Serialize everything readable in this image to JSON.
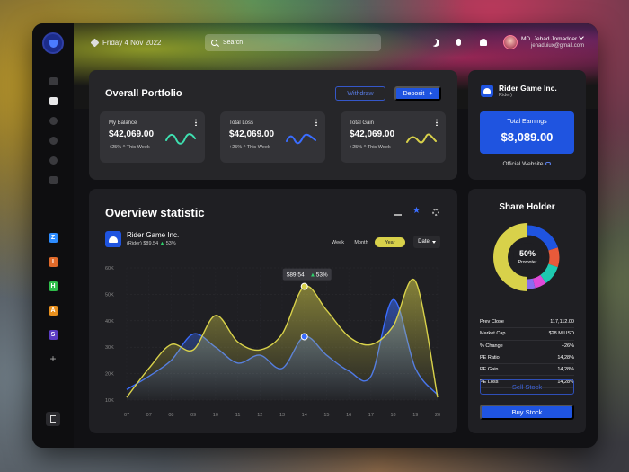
{
  "header": {
    "date": "Friday 4 Nov 2022",
    "search_placeholder": "Search",
    "user_name": "MD. Jehad Jomadder",
    "user_email": "jehaduiux@gmail.com"
  },
  "sidebar": {
    "nav_icons": [
      "grid-icon",
      "chart-icon",
      "chat-icon",
      "message-icon",
      "user-icon",
      "card-icon"
    ],
    "apps": [
      {
        "icon": "zoom-app-icon",
        "letter": "Z",
        "color": "#2d8cff"
      },
      {
        "icon": "app-orange-icon",
        "letter": "I",
        "color": "#e06a2a"
      },
      {
        "icon": "app-green-icon",
        "letter": "H",
        "color": "#2fbd4a"
      },
      {
        "icon": "app-amber-icon",
        "letter": "A",
        "color": "#e8901e"
      },
      {
        "icon": "app-purple-icon",
        "letter": "S",
        "color": "#5b3cc4"
      }
    ]
  },
  "portfolio": {
    "title": "Overall Portfolio",
    "withdraw_label": "Withdraw",
    "deposit_label": "Deposit",
    "cards": [
      {
        "label": "My Balance",
        "value": "$42,069.00",
        "change": "+25%",
        "period": "This Week",
        "spark_color": "#3ee0b0"
      },
      {
        "label": "Total Loss",
        "value": "$42,069.00",
        "change": "+25%",
        "period": "This Week",
        "spark_color": "#3a6dff"
      },
      {
        "label": "Total Gain",
        "value": "$42,069.00",
        "change": "+25%",
        "period": "This Week",
        "spark_color": "#d8d14a"
      }
    ]
  },
  "company": {
    "name": "Rider Game Inc.",
    "ticker": "Rider)",
    "earnings_label": "Total Earnings",
    "earnings_value": "$8,089.00",
    "website_label": "Official Website"
  },
  "overview": {
    "title": "Overview statistic",
    "company_name": "Rider Game Inc.",
    "ticker": "(Rider)",
    "price": "$89.54",
    "change": "53%",
    "periods": [
      "Week",
      "Month",
      "Year"
    ],
    "selected_period": "Year",
    "date_select": "Date",
    "tooltip_price": "$89.54",
    "tooltip_change": "53%"
  },
  "chart_data": {
    "type": "area",
    "categories": [
      "07",
      "07",
      "08",
      "09",
      "10",
      "11",
      "12",
      "13",
      "14",
      "15",
      "16",
      "17",
      "18",
      "19",
      "20"
    ],
    "y_ticks": [
      "10K",
      "20K",
      "30K",
      "40K",
      "50K",
      "60K"
    ],
    "ylim": [
      10,
      60
    ],
    "grid": true,
    "series": [
      {
        "color": "#d8d14a",
        "values": [
          11,
          22,
          31,
          29,
          42,
          32,
          29,
          35,
          53,
          44,
          34,
          31,
          38,
          55,
          11
        ]
      },
      {
        "color": "#3a6dff",
        "values": [
          14,
          19,
          25,
          35,
          30,
          24,
          27,
          22,
          34,
          27,
          21,
          19,
          48,
          22,
          12
        ]
      }
    ],
    "highlights": [
      {
        "series": 0,
        "index": 8
      },
      {
        "series": 1,
        "index": 8
      }
    ]
  },
  "holder": {
    "title": "Share Holder",
    "donut_percent": "50%",
    "donut_label": "Promoter",
    "donut_slices": [
      {
        "value": 50,
        "color": "#d8d14a"
      },
      {
        "value": 20,
        "color": "#1f54e0"
      },
      {
        "value": 10,
        "color": "#e85a3a"
      },
      {
        "value": 10,
        "color": "#1ec9b0"
      },
      {
        "value": 6,
        "color": "#e04ad8"
      },
      {
        "value": 4,
        "color": "#8a6df0"
      }
    ],
    "stats": [
      {
        "label": "Prev Close",
        "value": "117,112.00"
      },
      {
        "label": "Market Cap",
        "value": "$28 M USD"
      },
      {
        "label": "% Change",
        "value": "+26%"
      },
      {
        "label": "PE Ratio",
        "value": "14,28%"
      },
      {
        "label": "PE Gain",
        "value": "14,28%"
      },
      {
        "label": "PE Loss",
        "value": "14,28%"
      }
    ],
    "sell_label": "Sell Stock",
    "buy_label": "Buy Stock"
  }
}
